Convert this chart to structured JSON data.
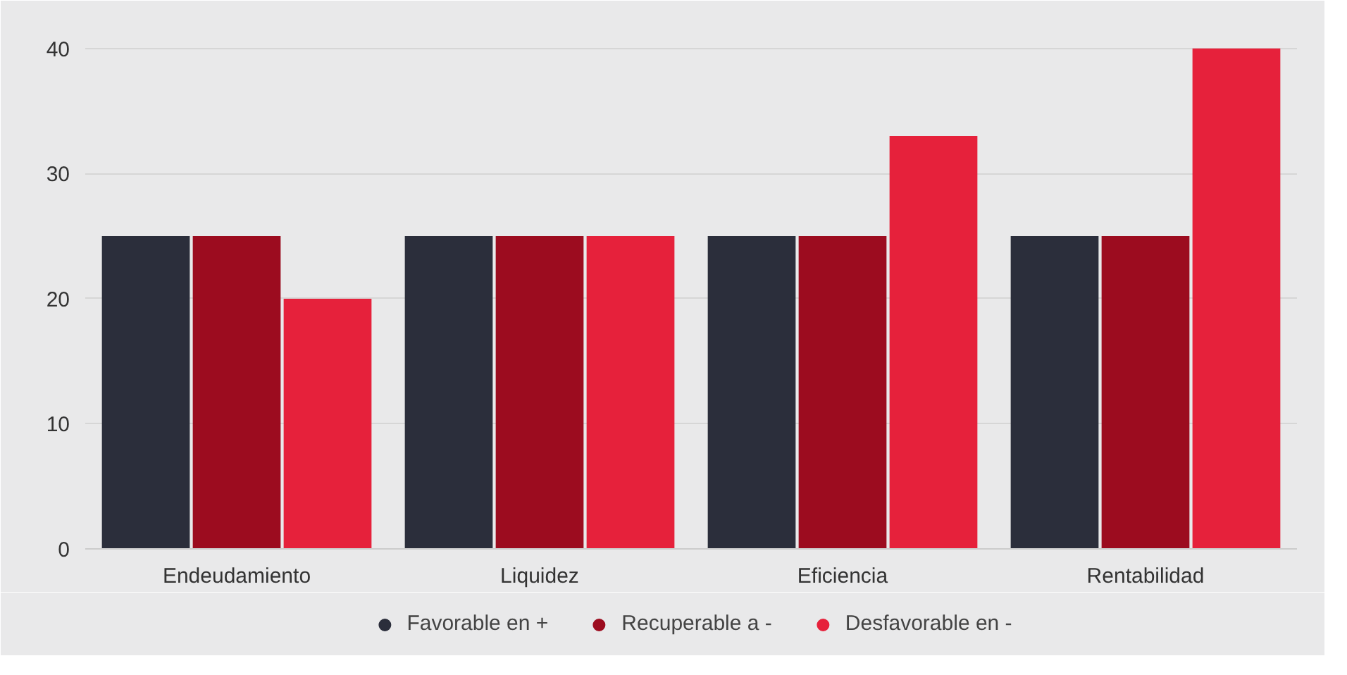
{
  "chart_data": {
    "type": "bar",
    "categories": [
      "Endeudamiento",
      "Liquidez",
      "Eficiencia",
      "Rentabilidad"
    ],
    "series": [
      {
        "name": "Favorable en +",
        "color": "#2b2e3b",
        "values": [
          25,
          25,
          25,
          25
        ]
      },
      {
        "name": "Recuperable a -",
        "color": "#9c0c1f",
        "values": [
          25,
          25,
          25,
          25
        ]
      },
      {
        "name": "Desfavorable en -",
        "color": "#e6213b",
        "values": [
          20,
          25,
          33,
          40
        ]
      }
    ],
    "ylim": [
      0,
      41
    ],
    "yticks": [
      0,
      10,
      20,
      30,
      40
    ],
    "grid": "y",
    "legend": "bottom"
  }
}
